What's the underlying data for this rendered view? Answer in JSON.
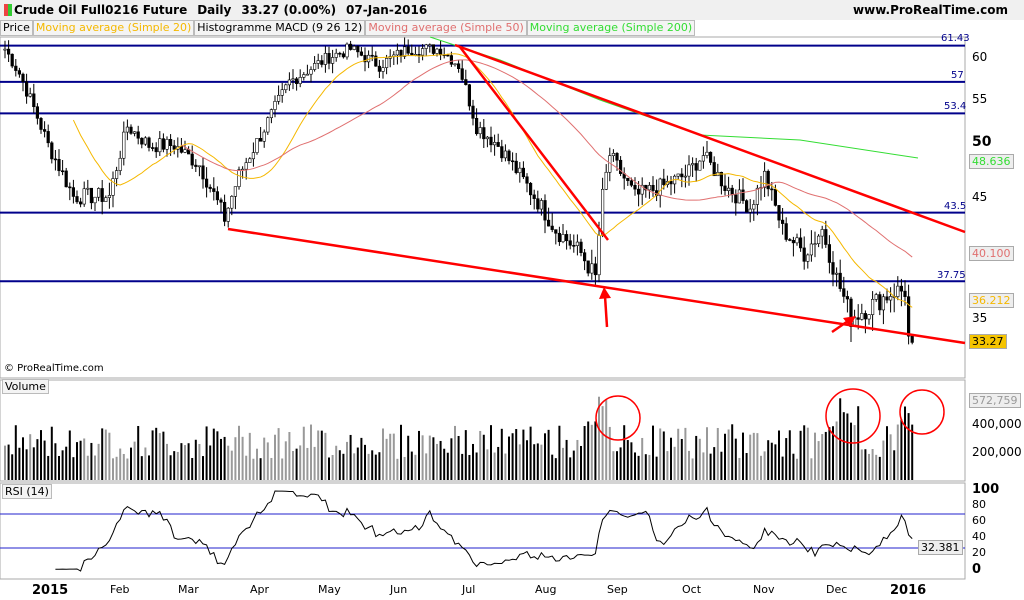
{
  "header": {
    "instrument": "Crude Oil Full0216 Future",
    "period": "Daily",
    "quote": "33.27 (0.00%)",
    "date": "07-Jan-2016",
    "site": "www.ProRealTime.com"
  },
  "legend": [
    {
      "label": "Price",
      "color": "#000000"
    },
    {
      "label": "Moving average (Simple 20)",
      "color": "#f5b800"
    },
    {
      "label": "Histogramme MACD (9 26 12)",
      "color": "#000000"
    },
    {
      "label": "Moving average (Simple 50)",
      "color": "#e07070"
    },
    {
      "label": "Moving average (Simple 200)",
      "color": "#33dd33"
    }
  ],
  "copyright": "© ProRealTime.com",
  "price_axis": {
    "ticks": [
      "60",
      "55",
      "50",
      "45",
      "35"
    ],
    "levels": [
      "61.43",
      "57",
      "53.4",
      "43.5",
      "37.75"
    ],
    "tags": {
      "ma200": "48.636",
      "ma50": "40.100",
      "ma20": "36.212",
      "last": "33.27"
    }
  },
  "volume": {
    "label": "Volume",
    "ticks": [
      "400,000",
      "200,000"
    ],
    "last": "572,759"
  },
  "rsi": {
    "label": "RSI (14)",
    "ticks": [
      "100",
      "80",
      "60",
      "40",
      "20",
      "0"
    ],
    "last": "32.381"
  },
  "time_axis": [
    "2015",
    "Feb",
    "Mar",
    "Apr",
    "May",
    "Jun",
    "Jul",
    "Aug",
    "Sep",
    "Oct",
    "Nov",
    "Dec",
    "2016"
  ],
  "chart_data": {
    "type": "candlestick",
    "scale": "log",
    "anchors": [
      [
        0,
        61
      ],
      [
        4,
        58
      ],
      [
        12,
        50
      ],
      [
        19,
        45
      ],
      [
        29,
        45
      ],
      [
        34,
        52
      ],
      [
        40,
        50
      ],
      [
        47,
        50
      ],
      [
        54,
        48
      ],
      [
        61,
        43
      ],
      [
        65,
        47
      ],
      [
        71,
        51
      ],
      [
        79,
        57
      ],
      [
        90,
        60
      ],
      [
        96,
        61
      ],
      [
        104,
        59
      ],
      [
        112,
        61
      ],
      [
        121,
        61
      ],
      [
        126,
        59
      ],
      [
        131,
        52
      ],
      [
        137,
        50
      ],
      [
        145,
        46
      ],
      [
        153,
        42
      ],
      [
        160,
        40
      ],
      [
        164,
        38
      ],
      [
        166,
        45
      ],
      [
        168,
        49
      ],
      [
        175,
        45
      ],
      [
        183,
        46
      ],
      [
        189,
        47
      ],
      [
        194,
        49
      ],
      [
        200,
        46
      ],
      [
        207,
        44
      ],
      [
        211,
        47
      ],
      [
        216,
        42
      ],
      [
        222,
        40
      ],
      [
        227,
        42
      ],
      [
        231,
        38
      ],
      [
        235,
        35
      ],
      [
        241,
        36
      ],
      [
        247,
        37
      ],
      [
        250,
        37
      ],
      [
        251,
        33.5
      ],
      [
        252,
        33.27
      ]
    ]
  }
}
